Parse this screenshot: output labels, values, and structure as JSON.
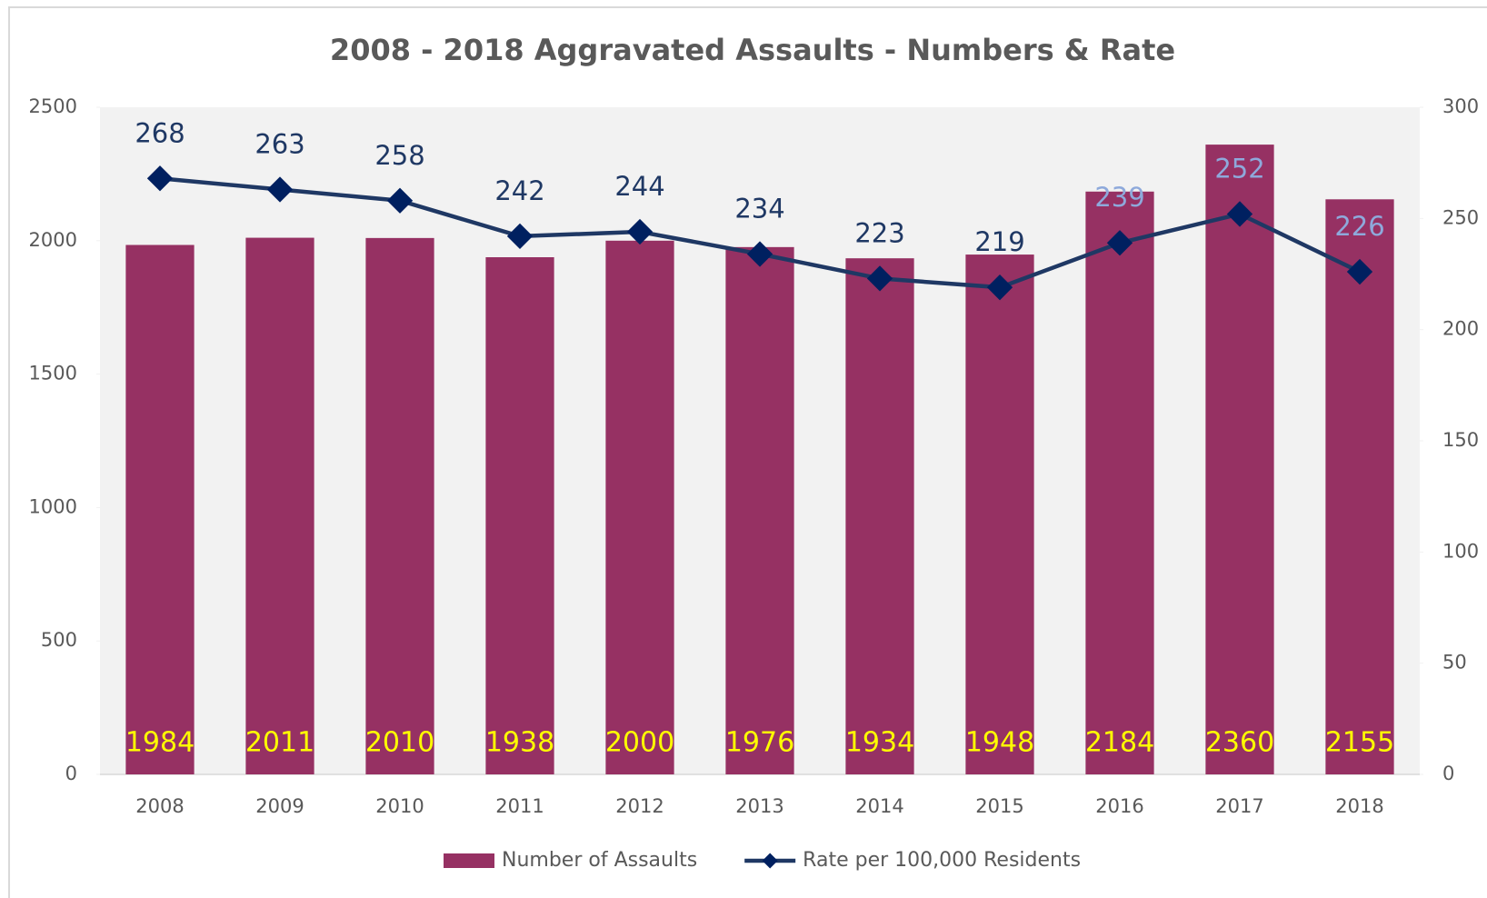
{
  "chart_data": {
    "type": "bar",
    "title": "2008 - 2018 Aggravated Assaults - Numbers & Rate",
    "categories": [
      "2008",
      "2009",
      "2010",
      "2011",
      "2012",
      "2013",
      "2014",
      "2015",
      "2016",
      "2017",
      "2018"
    ],
    "series": [
      {
        "name": "Number of Assaults",
        "type": "bar",
        "color": "#963163",
        "values": [
          1984,
          2011,
          2010,
          1938,
          2000,
          1976,
          1934,
          1948,
          2184,
          2360,
          2155
        ]
      },
      {
        "name": "Rate per 100,000 Residents",
        "type": "line",
        "axis": "y2",
        "color": "#1f3864",
        "values": [
          268,
          263,
          258,
          242,
          244,
          234,
          223,
          219,
          239,
          252,
          226
        ]
      }
    ],
    "ylim": [
      0,
      2500
    ],
    "yticks": [
      0,
      500,
      1000,
      1500,
      2000,
      2500
    ],
    "y2lim": [
      0,
      300
    ],
    "y2ticks": [
      0,
      50,
      100,
      150,
      200,
      250,
      300
    ],
    "legend": "bottom"
  }
}
